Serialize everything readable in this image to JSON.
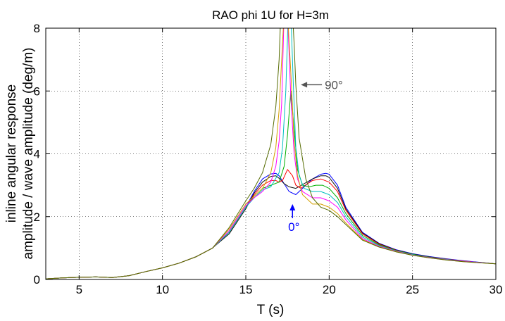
{
  "chart_data": {
    "type": "line",
    "title": "RAO phi 1U for H=3m",
    "xlabel": "T (s)",
    "ylabel_lines": [
      "inline angular response",
      "amplitude / wave amplitude (deg/m)"
    ],
    "xlim": [
      3,
      30
    ],
    "ylim": [
      0,
      8
    ],
    "xticks": [
      5,
      10,
      15,
      20,
      25,
      30
    ],
    "yticks": [
      0,
      2,
      4,
      6,
      8
    ],
    "grid": true,
    "annotations": [
      {
        "text": "90°",
        "x": 18.3,
        "y": 6.2,
        "color": "#555555"
      },
      {
        "text": "0°",
        "x": 17.8,
        "y": 2.4,
        "color": "#0000ff"
      }
    ],
    "series": [
      {
        "color": "#0000ff",
        "x": [
          3,
          4,
          5,
          6,
          7,
          8,
          9,
          10,
          11,
          12,
          13,
          14,
          15,
          15.5,
          16,
          16.5,
          16.8,
          17,
          17.3,
          17.6,
          18,
          18.5,
          19,
          19.5,
          19.8,
          20,
          20.5,
          21,
          22,
          23,
          24,
          25,
          26,
          27,
          28,
          29,
          30
        ],
        "y": [
          0.02,
          0.05,
          0.07,
          0.08,
          0.06,
          0.12,
          0.25,
          0.37,
          0.52,
          0.72,
          1.0,
          1.5,
          2.3,
          2.8,
          3.2,
          3.36,
          3.38,
          3.3,
          3.05,
          2.8,
          2.7,
          2.95,
          3.2,
          3.35,
          3.38,
          3.35,
          3.0,
          2.3,
          1.5,
          1.15,
          0.95,
          0.82,
          0.73,
          0.66,
          0.6,
          0.55,
          0.5
        ]
      },
      {
        "color": "#111111",
        "x": [
          3,
          4,
          5,
          6,
          7,
          8,
          9,
          10,
          11,
          12,
          13,
          14,
          15,
          15.5,
          16,
          16.5,
          16.8,
          17,
          17.3,
          17.6,
          18,
          18.5,
          19,
          19.5,
          19.8,
          20,
          20.5,
          21,
          22,
          23,
          24,
          25,
          26,
          27,
          28,
          29,
          30
        ],
        "y": [
          0.02,
          0.05,
          0.07,
          0.08,
          0.06,
          0.12,
          0.25,
          0.37,
          0.52,
          0.72,
          1.0,
          1.45,
          2.25,
          2.75,
          3.1,
          3.28,
          3.3,
          3.22,
          3.05,
          2.95,
          2.9,
          3.05,
          3.2,
          3.3,
          3.3,
          3.25,
          2.9,
          2.25,
          1.48,
          1.14,
          0.94,
          0.81,
          0.72,
          0.65,
          0.59,
          0.54,
          0.5
        ]
      },
      {
        "color": "#ff0000",
        "x": [
          3,
          4,
          5,
          6,
          7,
          8,
          9,
          10,
          11,
          12,
          13,
          14,
          15,
          15.5,
          16,
          16.5,
          16.8,
          17,
          17.2,
          17.5,
          17.8,
          18,
          18.3,
          18.7,
          19,
          19.5,
          20,
          20.5,
          21,
          22,
          23,
          24,
          25,
          26,
          27,
          28,
          29,
          30
        ],
        "y": [
          0.02,
          0.05,
          0.07,
          0.08,
          0.06,
          0.12,
          0.25,
          0.37,
          0.52,
          0.72,
          1.0,
          1.5,
          2.3,
          2.7,
          3.0,
          3.15,
          3.15,
          3.1,
          3.15,
          3.5,
          3.3,
          3.0,
          2.9,
          3.05,
          3.15,
          3.2,
          3.1,
          2.8,
          2.2,
          1.45,
          1.12,
          0.93,
          0.8,
          0.71,
          0.65,
          0.59,
          0.54,
          0.5
        ]
      },
      {
        "color": "#00b000",
        "x": [
          3,
          4,
          5,
          6,
          7,
          8,
          9,
          10,
          11,
          12,
          13,
          14,
          15,
          15.5,
          16,
          16.5,
          17,
          17.3,
          17.5,
          17.7,
          17.9,
          18.1,
          18.4,
          18.8,
          19.2,
          19.6,
          20,
          20.5,
          21,
          22,
          23,
          24,
          25,
          26,
          27,
          28,
          29,
          30
        ],
        "y": [
          0.02,
          0.05,
          0.07,
          0.08,
          0.06,
          0.12,
          0.25,
          0.37,
          0.52,
          0.72,
          1.0,
          1.5,
          2.3,
          2.65,
          2.9,
          3.0,
          3.1,
          3.6,
          4.6,
          6.0,
          4.8,
          3.5,
          3.0,
          2.95,
          3.0,
          3.0,
          2.9,
          2.6,
          2.1,
          1.4,
          1.1,
          0.92,
          0.8,
          0.71,
          0.64,
          0.58,
          0.54,
          0.5
        ]
      },
      {
        "color": "#00c0c0",
        "x": [
          3,
          4,
          5,
          6,
          7,
          8,
          9,
          10,
          11,
          12,
          13,
          14,
          15,
          15.5,
          16,
          16.5,
          17,
          17.2,
          17.4,
          17.55,
          17.7,
          17.85,
          18.0,
          18.2,
          18.5,
          19,
          19.5,
          20,
          20.5,
          21,
          22,
          23,
          24,
          25,
          26,
          27,
          28,
          29,
          30
        ],
        "y": [
          0.02,
          0.05,
          0.07,
          0.08,
          0.06,
          0.12,
          0.25,
          0.37,
          0.52,
          0.72,
          1.0,
          1.5,
          2.3,
          2.6,
          2.85,
          2.95,
          3.4,
          4.2,
          6.0,
          8.5,
          8.5,
          6.2,
          4.2,
          3.3,
          2.9,
          2.8,
          2.8,
          2.7,
          2.45,
          2.0,
          1.35,
          1.08,
          0.91,
          0.79,
          0.7,
          0.64,
          0.58,
          0.54,
          0.5
        ]
      },
      {
        "color": "#ff00ff",
        "x": [
          3,
          4,
          5,
          6,
          7,
          8,
          9,
          10,
          11,
          12,
          13,
          14,
          15,
          15.5,
          16,
          16.5,
          16.8,
          17,
          17.15,
          17.3,
          17.5,
          17.7,
          17.9,
          18.1,
          18.4,
          19,
          19.5,
          20,
          20.5,
          21,
          22,
          23,
          24,
          25,
          26,
          27,
          28,
          29,
          30
        ],
        "y": [
          0.02,
          0.05,
          0.07,
          0.08,
          0.06,
          0.12,
          0.25,
          0.37,
          0.52,
          0.72,
          1.0,
          1.55,
          2.35,
          2.6,
          2.8,
          3.1,
          3.6,
          4.4,
          5.6,
          8.5,
          8.5,
          5.8,
          4.0,
          3.2,
          2.8,
          2.6,
          2.6,
          2.5,
          2.3,
          1.9,
          1.3,
          1.06,
          0.9,
          0.78,
          0.7,
          0.63,
          0.58,
          0.54,
          0.5
        ]
      },
      {
        "color": "#d4a000",
        "x": [
          3,
          4,
          5,
          6,
          7,
          8,
          9,
          10,
          11,
          12,
          13,
          14,
          15,
          15.5,
          16,
          16.5,
          16.8,
          17,
          17.15,
          17.3,
          17.5,
          17.7,
          17.9,
          18.1,
          18.4,
          19,
          19.5,
          20,
          20.5,
          21,
          22,
          23,
          24,
          25,
          26,
          27,
          28,
          29,
          30
        ],
        "y": [
          0.02,
          0.05,
          0.07,
          0.08,
          0.06,
          0.12,
          0.25,
          0.37,
          0.52,
          0.72,
          1.0,
          1.6,
          2.4,
          2.65,
          2.9,
          3.4,
          4.2,
          5.4,
          7.0,
          8.5,
          8.5,
          6.6,
          4.4,
          3.3,
          2.7,
          2.4,
          2.4,
          2.3,
          2.1,
          1.8,
          1.27,
          1.04,
          0.89,
          0.77,
          0.69,
          0.62,
          0.57,
          0.53,
          0.5
        ]
      },
      {
        "color": "#556b00",
        "x": [
          3,
          4,
          5,
          6,
          7,
          8,
          9,
          10,
          11,
          12,
          13,
          14,
          15,
          15.5,
          16,
          16.5,
          16.8,
          17,
          17.1,
          17.2,
          17.3,
          17.5,
          17.7,
          17.8,
          17.9,
          18.0,
          18.2,
          18.6,
          19,
          19.5,
          20,
          20.5,
          21,
          22,
          23,
          24,
          25,
          26,
          27,
          28,
          29,
          30
        ],
        "y": [
          0.02,
          0.05,
          0.07,
          0.08,
          0.06,
          0.12,
          0.25,
          0.37,
          0.52,
          0.72,
          1.0,
          1.65,
          2.5,
          2.9,
          3.4,
          4.3,
          5.5,
          7.0,
          8.5,
          8.5,
          8.5,
          8.5,
          8.5,
          8.5,
          7.5,
          6.2,
          4.5,
          3.2,
          2.6,
          2.3,
          2.2,
          2.0,
          1.75,
          1.25,
          1.03,
          0.88,
          0.77,
          0.69,
          0.62,
          0.57,
          0.53,
          0.5
        ]
      }
    ]
  }
}
